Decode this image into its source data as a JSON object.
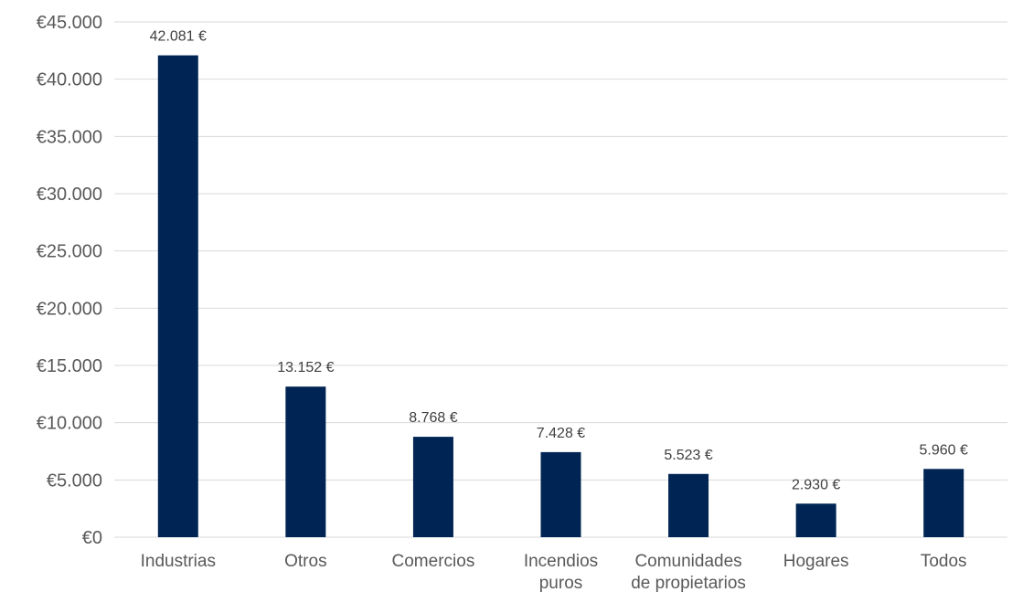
{
  "chart_data": {
    "type": "bar",
    "title": "",
    "xlabel": "",
    "ylabel": "",
    "categories": [
      [
        "Industrias"
      ],
      [
        "Otros"
      ],
      [
        "Comercios"
      ],
      [
        "Incendios",
        "puros"
      ],
      [
        "Comunidades",
        "de propietarios"
      ],
      [
        "Hogares"
      ],
      [
        "Todos"
      ]
    ],
    "values": [
      42081,
      13152,
      8768,
      7428,
      5523,
      2930,
      5960
    ],
    "data_labels": [
      "42.081 €",
      "13.152 €",
      "8.768 €",
      "7.428 €",
      "5.523 €",
      "2.930 €",
      "5.960 €"
    ],
    "ylim": [
      0,
      45000
    ],
    "yticks": [
      0,
      5000,
      10000,
      15000,
      20000,
      25000,
      30000,
      35000,
      40000,
      45000
    ],
    "ytick_labels": [
      "€0",
      "€5.000",
      "€10.000",
      "€15.000",
      "€20.000",
      "€25.000",
      "€30.000",
      "€35.000",
      "€40.000",
      "€45.000"
    ],
    "grid": true,
    "legend": "none",
    "bar_color": "#002554"
  }
}
